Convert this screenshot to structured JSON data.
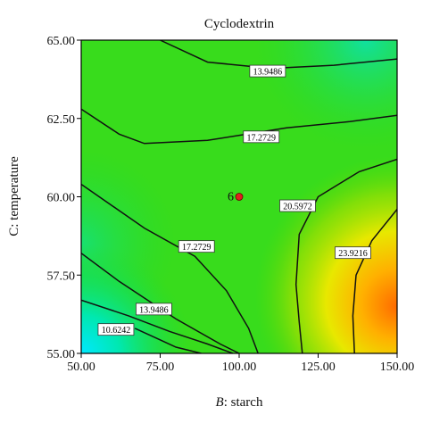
{
  "chart_data": {
    "type": "contour",
    "title": "Cyclodextrin",
    "xlabel_italic": "B",
    "xlabel_rest": ": starch",
    "ylabel": "C: temperature",
    "xlim": [
      50,
      150
    ],
    "ylim": [
      55,
      65
    ],
    "xticks": [
      "50.00",
      "75.00",
      "100.00",
      "125.00",
      "150.00"
    ],
    "yticks": [
      "55.00",
      "57.50",
      "60.00",
      "62.50",
      "65.00"
    ],
    "contour_levels": [
      {
        "value": 10.6242,
        "label": "10.6242",
        "label_at": [
          61,
          55.75
        ]
      },
      {
        "value": 13.9486,
        "label": "13.9486",
        "label_at": [
          73,
          56.4
        ]
      },
      {
        "value": 17.2729,
        "label": "17.2729",
        "label_at": [
          86.5,
          58.4
        ]
      },
      {
        "value": 13.9486,
        "label": "13.9486",
        "label_at": [
          109,
          64.0
        ]
      },
      {
        "value": 17.2729,
        "label": "17.2729",
        "label_at": [
          107,
          61.9
        ]
      },
      {
        "value": 20.5972,
        "label": "20.5972",
        "label_at": [
          118.5,
          59.7
        ]
      },
      {
        "value": 23.9216,
        "label": "23.9216",
        "label_at": [
          136,
          58.2
        ]
      }
    ],
    "design_point": {
      "x": 100,
      "y": 60,
      "label": "6",
      "color": "#e02020"
    },
    "colormap": "blue-green-yellow-red",
    "colors": {
      "low": "#00e8ff",
      "mid": "#2ee028",
      "high": "#ff7a00"
    }
  }
}
